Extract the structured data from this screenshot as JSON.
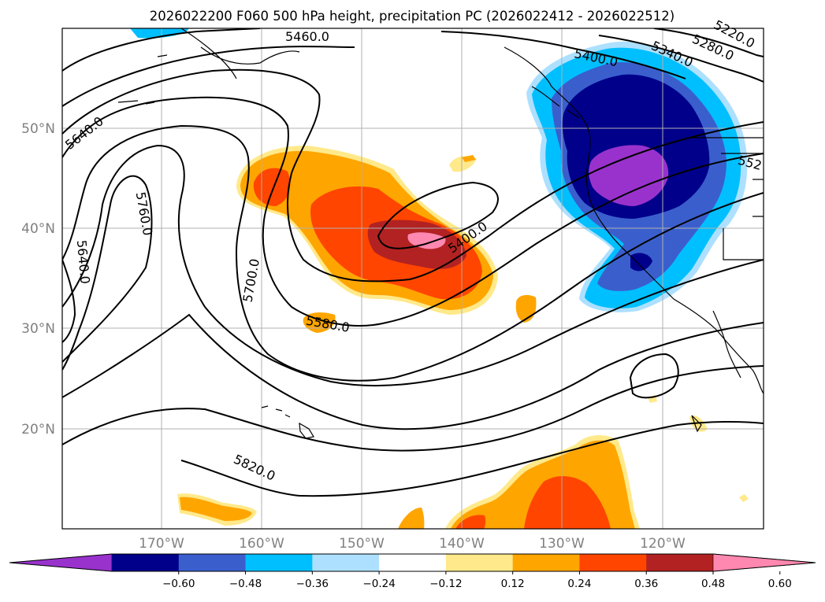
{
  "title": "2026022200 F060 500 hPa height, precipitation PC (2026022412 - 2026022512)",
  "lat_labels": [
    "50°N",
    "40°N",
    "30°N",
    "20°N"
  ],
  "lon_labels": [
    "170°W",
    "160°W",
    "150°W",
    "140°W",
    "130°W",
    "120°W"
  ],
  "contour_labels": [
    "5460.0",
    "5640.0",
    "5760.0",
    "5640.0",
    "5700.0",
    "5580.0",
    "5400.0",
    "5400.0",
    "5340.0",
    "5280.0",
    "5220.0",
    "552",
    "5820.0"
  ],
  "colorbar": {
    "ticks": [
      "−0.60",
      "−0.48",
      "−0.36",
      "−0.24",
      "−0.12",
      "0.12",
      "0.24",
      "0.36",
      "0.48",
      "0.60"
    ],
    "colors": [
      "#9932CC",
      "#00008B",
      "#3A5FCD",
      "#00BFFF",
      "#ADE0FF",
      "#FFFFFF",
      "#FFE98A",
      "#FFA500",
      "#FF4500",
      "#B22222",
      "#FF88B0"
    ]
  }
}
